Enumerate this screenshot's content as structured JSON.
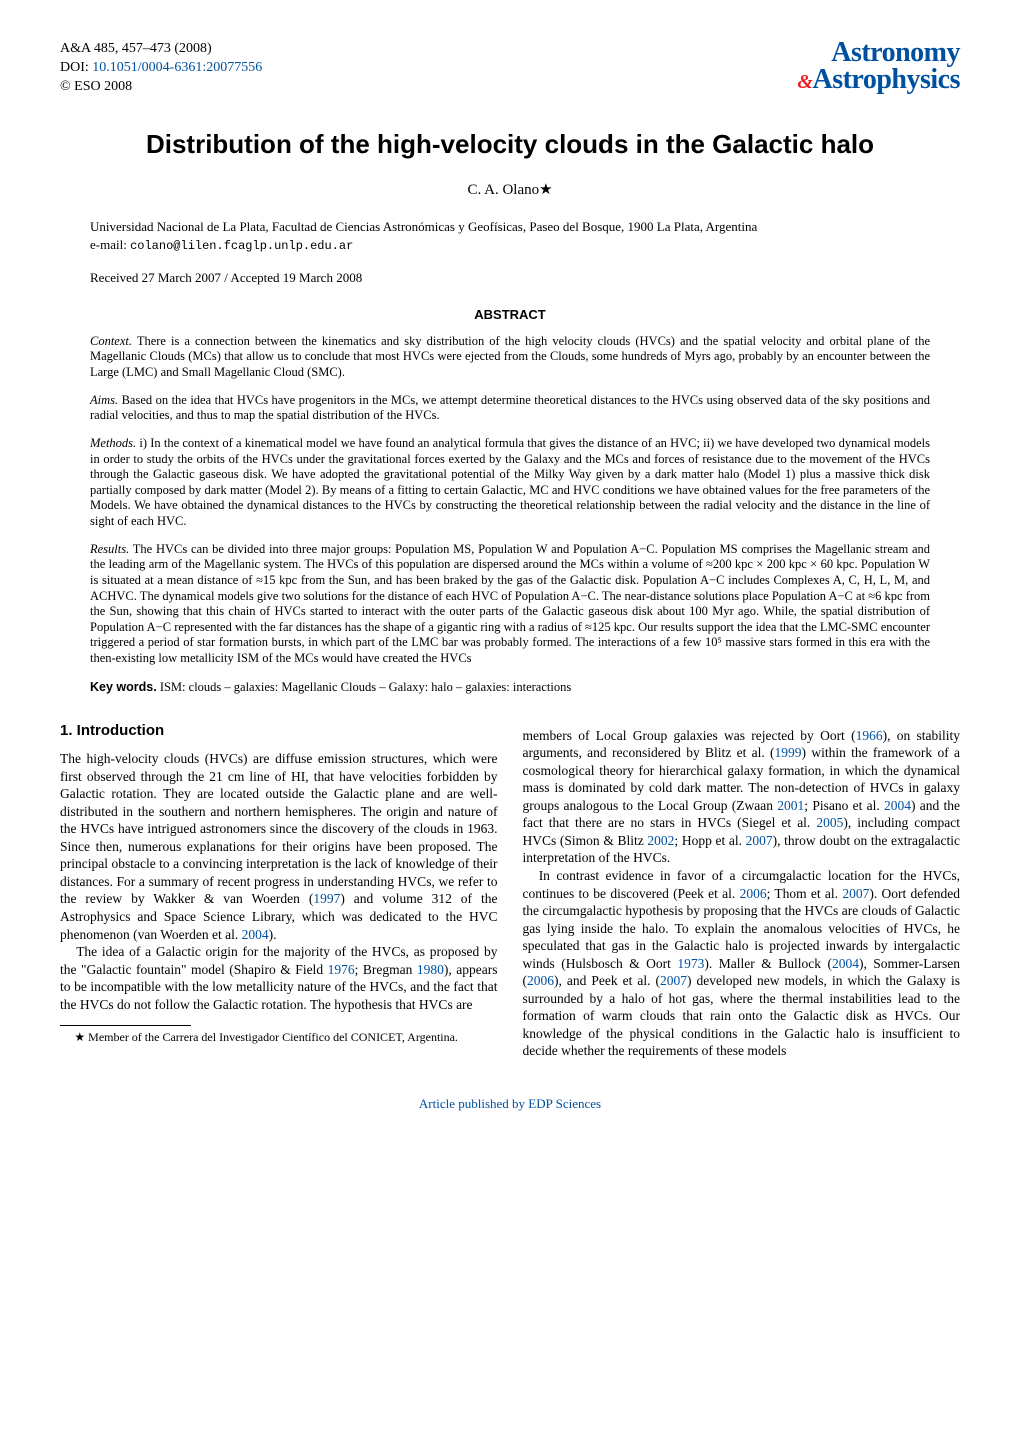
{
  "journal": {
    "ref": "A&A 485, 457–473 (2008)",
    "doi_label": "DOI: ",
    "doi": "10.1051/0004-6361:20077556",
    "copyright": "© ESO 2008",
    "logo_top": "Astronomy",
    "logo_amp": "&",
    "logo_bottom": "Astrophysics"
  },
  "title": "Distribution of the high-velocity clouds in the Galactic halo",
  "author": "C. A. Olano",
  "author_mark": "★",
  "affiliation": "Universidad Nacional de La Plata, Facultad de Ciencias Astronómicas y Geofísicas, Paseo del Bosque, 1900 La Plata, Argentina",
  "email_label": "e-mail: ",
  "email": "colano@lilen.fcaglp.unlp.edu.ar",
  "dates": "Received 27 March 2007 / Accepted 19 March 2008",
  "abstract_heading": "ABSTRACT",
  "abstract": {
    "context_label": "Context.",
    "context": " There is a connection between the kinematics and sky distribution of the high velocity clouds (HVCs) and the spatial velocity and orbital plane of the Magellanic Clouds (MCs) that allow us to conclude that most HVCs were ejected from the Clouds, some hundreds of Myrs ago, probably by an encounter between the Large (LMC) and Small Magellanic Cloud (SMC).",
    "aims_label": "Aims.",
    "aims": " Based on the idea that HVCs have progenitors in the MCs, we attempt determine theoretical distances to the HVCs using observed data of the sky positions and radial velocities, and thus to map the spatial distribution of the HVCs.",
    "methods_label": "Methods.",
    "methods": " i) In the context of a kinematical model we have found an analytical formula that gives the distance of an HVC; ii) we have developed two dynamical models in order to study the orbits of the HVCs under the gravitational forces exerted by the Galaxy and the MCs and forces of resistance due to the movement of the HVCs through the Galactic gaseous disk. We have adopted the gravitational potential of the Milky Way given by a dark matter halo (Model 1) plus a massive thick disk partially composed by dark matter (Model 2). By means of a fitting to certain Galactic, MC and HVC conditions we have obtained values for the free parameters of the Models. We have obtained the dynamical distances to the HVCs by constructing the theoretical relationship between the radial velocity and the distance in the line of sight of each HVC.",
    "results_label": "Results.",
    "results": " The HVCs can be divided into three major groups: Population MS, Population W and Population A−C. Population MS comprises the Magellanic stream and the leading arm of the Magellanic system. The HVCs of this population are dispersed around the MCs within a volume of ≈200 kpc × 200 kpc × 60 kpc. Population W is situated at a mean distance of ≈15 kpc from the Sun, and has been braked by the gas of the Galactic disk. Population A−C includes Complexes A, C, H, L, M, and ACHVC. The dynamical models give two solutions for the distance of each HVC of Population A−C. The near-distance solutions place Population A−C at ≈6 kpc from the Sun, showing that this chain of HVCs started to interact with the outer parts of the Galactic gaseous disk about 100 Myr ago. While, the spatial distribution of Population A−C represented with the far distances has the shape of a gigantic ring with a radius of ≈125 kpc. Our results support the idea that the LMC-SMC encounter triggered a period of star formation bursts, in which part of the LMC bar was probably formed. The interactions of a few 10⁵ massive stars formed in this era with the then-existing low metallicity ISM of the MCs would have created the HVCs"
  },
  "keywords_label": "Key words.",
  "keywords": " ISM: clouds – galaxies: Magellanic Clouds – Galaxy: halo – galaxies: interactions",
  "section1_heading": "1. Introduction",
  "col1": {
    "p1": "The high-velocity clouds (HVCs) are diffuse emission structures, which were first observed through the 21 cm line of HI, that have velocities forbidden by Galactic rotation. They are located outside the Galactic plane and are well-distributed in the southern and northern hemispheres. The origin and nature of the HVCs have intrigued astronomers since the discovery of the clouds in 1963. Since then, numerous explanations for their origins have been proposed. The principal obstacle to a convincing interpretation is the lack of knowledge of their distances. For a summary of recent progress in understanding HVCs, we refer to the review by Wakker & van Woerden (",
    "p1_cite1": "1997",
    "p1_b": ") and volume 312 of the Astrophysics and Space Science Library, which was dedicated to the HVC phenomenon (van Woerden et al. ",
    "p1_cite2": "2004",
    "p1_c": ").",
    "p2a": "The idea of a Galactic origin for the majority of the HVCs, as proposed by the \"Galactic fountain\" model (Shapiro & Field ",
    "p2_cite1": "1976",
    "p2b": "; Bregman ",
    "p2_cite2": "1980",
    "p2c": "), appears to be incompatible with the low metallicity nature of the HVCs, and the fact that the HVCs do not follow the Galactic rotation. The hypothesis that HVCs are"
  },
  "footnote_mark": "★",
  "footnote": " Member of the Carrera del Investigador Científico del CONICET, Argentina.",
  "col2": {
    "p1a": "members of Local Group galaxies was rejected by Oort (",
    "c1": "1966",
    "p1b": "), on stability arguments, and reconsidered by Blitz et al. (",
    "c2": "1999",
    "p1c": ") within the framework of a cosmological theory for hierarchical galaxy formation, in which the dynamical mass is dominated by cold dark matter. The non-detection of HVCs in galaxy groups analogous to the Local Group (Zwaan ",
    "c3": "2001",
    "p1d": "; Pisano et al. ",
    "c4": "2004",
    "p1e": ") and the fact that there are no stars in HVCs (Siegel et al. ",
    "c5": "2005",
    "p1f": "), including compact HVCs (Simon & Blitz ",
    "c6": "2002",
    "p1g": "; Hopp et al. ",
    "c7": "2007",
    "p1h": "), throw doubt on the extragalactic interpretation of the HVCs.",
    "p2a": "In contrast evidence in favor of a circumgalactic location for the HVCs, continues to be discovered (Peek et al. ",
    "c8": "2006",
    "p2b": "; Thom et al. ",
    "c9": "2007",
    "p2c": "). Oort defended the circumgalactic hypothesis by proposing that the HVCs are clouds of Galactic gas lying inside the halo. To explain the anomalous velocities of HVCs, he speculated that gas in the Galactic halo is projected inwards by intergalactic winds (Hulsbosch & Oort ",
    "c10": "1973",
    "p2d": "). Maller & Bullock (",
    "c11": "2004",
    "p2e": "), Sommer-Larsen (",
    "c12": "2006",
    "p2f": "), and Peek et al. (",
    "c13": "2007",
    "p2g": ") developed new models, in which the Galaxy is surrounded by a halo of hot gas, where the thermal instabilities lead to the formation of warm clouds that rain onto the Galactic disk as HVCs. Our knowledge of the physical conditions in the Galactic halo is insufficient to decide whether the requirements of these models"
  },
  "footer_link": "Article published by EDP Sciences"
}
